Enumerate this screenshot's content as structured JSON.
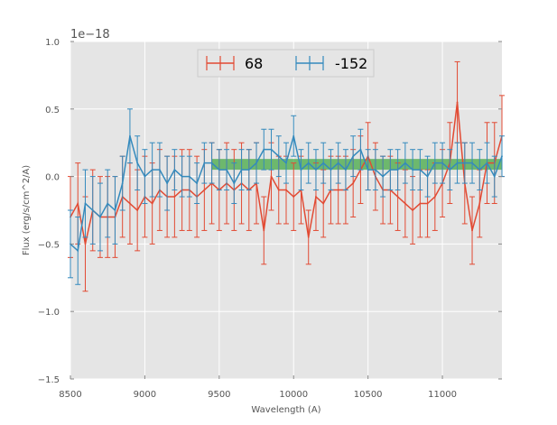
{
  "chart_data": {
    "type": "line",
    "title": "",
    "xlabel": "Wavelength (A)",
    "ylabel": "Flux (erg/s/cm^2/A)",
    "offset_text": "1e−18",
    "xlim": [
      8500,
      11400
    ],
    "ylim": [
      -1.5,
      1.0
    ],
    "scale": 1e-18,
    "grid": true,
    "legend_position": "top-center",
    "xticks": [
      8500,
      9000,
      9500,
      10000,
      10500,
      11000
    ],
    "xtick_labels": [
      "8500",
      "9000",
      "9500",
      "10000",
      "10500",
      "11000"
    ],
    "yticks": [
      -1.5,
      -1.0,
      -0.5,
      0.0,
      0.5,
      1.0
    ],
    "ytick_labels": [
      "−1.5",
      "−1.0",
      "−0.5",
      "0.0",
      "0.5",
      "1.0"
    ],
    "band": {
      "x": [
        9450,
        11400
      ],
      "y": [
        0.05,
        0.13
      ],
      "color": "#2ca02c"
    },
    "series": [
      {
        "name": "68",
        "color": "#e24a33",
        "x": [
          8500,
          8550,
          8600,
          8650,
          8700,
          8750,
          8800,
          8850,
          8900,
          8950,
          9000,
          9050,
          9100,
          9150,
          9200,
          9250,
          9300,
          9350,
          9400,
          9450,
          9500,
          9550,
          9600,
          9650,
          9700,
          9750,
          9800,
          9850,
          9900,
          9950,
          10000,
          10050,
          10100,
          10150,
          10200,
          10250,
          10300,
          10350,
          10400,
          10450,
          10500,
          10550,
          10600,
          10650,
          10700,
          10750,
          10800,
          10850,
          10900,
          10950,
          11000,
          11050,
          11100,
          11150,
          11200,
          11250,
          11300,
          11350,
          11400
        ],
        "values": [
          -0.3,
          -0.2,
          -0.5,
          -0.25,
          -0.3,
          -0.3,
          -0.3,
          -0.15,
          -0.2,
          -0.25,
          -0.15,
          -0.2,
          -0.1,
          -0.15,
          -0.15,
          -0.1,
          -0.1,
          -0.15,
          -0.1,
          -0.05,
          -0.1,
          -0.05,
          -0.1,
          -0.05,
          -0.1,
          -0.05,
          -0.4,
          0.0,
          -0.1,
          -0.1,
          -0.15,
          -0.1,
          -0.45,
          -0.15,
          -0.2,
          -0.1,
          -0.1,
          -0.1,
          -0.05,
          0.05,
          0.15,
          0.0,
          -0.1,
          -0.1,
          -0.15,
          -0.2,
          -0.25,
          -0.2,
          -0.2,
          -0.15,
          -0.05,
          0.1,
          0.55,
          -0.05,
          -0.4,
          -0.2,
          0.1,
          0.1,
          0.3
        ],
        "errors": [
          0.3,
          0.3,
          0.35,
          0.3,
          0.3,
          0.3,
          0.3,
          0.3,
          0.3,
          0.3,
          0.3,
          0.3,
          0.3,
          0.3,
          0.3,
          0.3,
          0.3,
          0.3,
          0.3,
          0.3,
          0.3,
          0.3,
          0.3,
          0.3,
          0.3,
          0.3,
          0.25,
          0.25,
          0.25,
          0.25,
          0.25,
          0.25,
          0.2,
          0.25,
          0.25,
          0.25,
          0.25,
          0.25,
          0.25,
          0.25,
          0.25,
          0.25,
          0.25,
          0.25,
          0.25,
          0.25,
          0.25,
          0.25,
          0.25,
          0.25,
          0.25,
          0.3,
          0.3,
          0.3,
          0.25,
          0.25,
          0.3,
          0.3,
          0.3
        ]
      },
      {
        "name": "-152",
        "color": "#348abd",
        "x": [
          8500,
          8550,
          8600,
          8650,
          8700,
          8750,
          8800,
          8850,
          8900,
          8950,
          9000,
          9050,
          9100,
          9150,
          9200,
          9250,
          9300,
          9350,
          9400,
          9450,
          9500,
          9550,
          9600,
          9650,
          9700,
          9750,
          9800,
          9850,
          9900,
          9950,
          10000,
          10050,
          10100,
          10150,
          10200,
          10250,
          10300,
          10350,
          10400,
          10450,
          10500,
          10550,
          10600,
          10650,
          10700,
          10750,
          10800,
          10850,
          10900,
          10950,
          11000,
          11050,
          11100,
          11150,
          11200,
          11250,
          11300,
          11350,
          11400
        ],
        "values": [
          -0.5,
          -0.55,
          -0.2,
          -0.25,
          -0.3,
          -0.2,
          -0.25,
          -0.05,
          0.3,
          0.1,
          0.0,
          0.05,
          0.05,
          -0.05,
          0.05,
          0.0,
          0.0,
          -0.05,
          0.1,
          0.1,
          0.05,
          0.05,
          -0.05,
          0.05,
          0.05,
          0.1,
          0.2,
          0.2,
          0.15,
          0.1,
          0.3,
          0.05,
          0.1,
          0.05,
          0.1,
          0.05,
          0.1,
          0.05,
          0.15,
          0.2,
          0.05,
          0.05,
          0.0,
          0.05,
          0.05,
          0.1,
          0.05,
          0.05,
          0.0,
          0.1,
          0.1,
          0.05,
          0.1,
          0.1,
          0.1,
          0.05,
          0.1,
          0.0,
          0.15
        ],
        "errors": [
          0.25,
          0.25,
          0.25,
          0.25,
          0.25,
          0.25,
          0.25,
          0.2,
          0.2,
          0.2,
          0.2,
          0.2,
          0.2,
          0.2,
          0.15,
          0.15,
          0.15,
          0.15,
          0.15,
          0.15,
          0.15,
          0.15,
          0.15,
          0.15,
          0.15,
          0.15,
          0.15,
          0.15,
          0.15,
          0.15,
          0.15,
          0.15,
          0.15,
          0.15,
          0.15,
          0.15,
          0.15,
          0.15,
          0.15,
          0.15,
          0.15,
          0.15,
          0.15,
          0.15,
          0.15,
          0.15,
          0.15,
          0.15,
          0.15,
          0.15,
          0.15,
          0.15,
          0.15,
          0.15,
          0.15,
          0.15,
          0.15,
          0.15,
          0.15
        ]
      }
    ]
  }
}
